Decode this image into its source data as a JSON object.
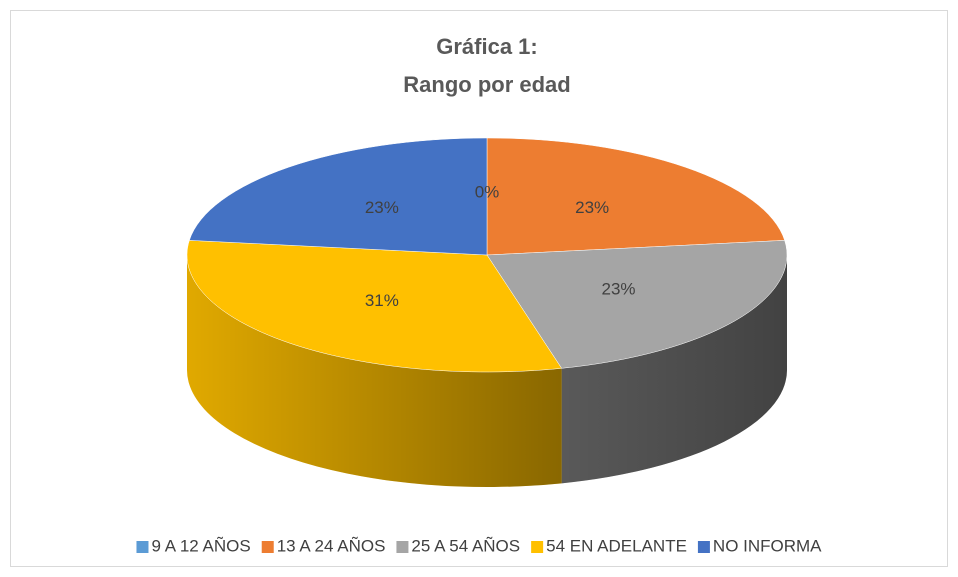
{
  "chart_data": {
    "type": "pie",
    "title": [
      "Gráfica 1:",
      "Rango por edad"
    ],
    "categories": [
      "9 A 12 AÑOS",
      "13 A 24 AÑOS",
      "25 A 54 AÑOS",
      "54 EN ADELANTE",
      "NO INFORMA"
    ],
    "values": [
      0,
      23,
      23,
      31,
      23
    ],
    "value_labels": [
      "0%",
      "23%",
      "23%",
      "31%",
      "23%"
    ],
    "colors": [
      "#5b9bd5",
      "#ed7d31",
      "#a5a5a5",
      "#ffc000",
      "#4472c4"
    ],
    "legend": "bottom"
  }
}
